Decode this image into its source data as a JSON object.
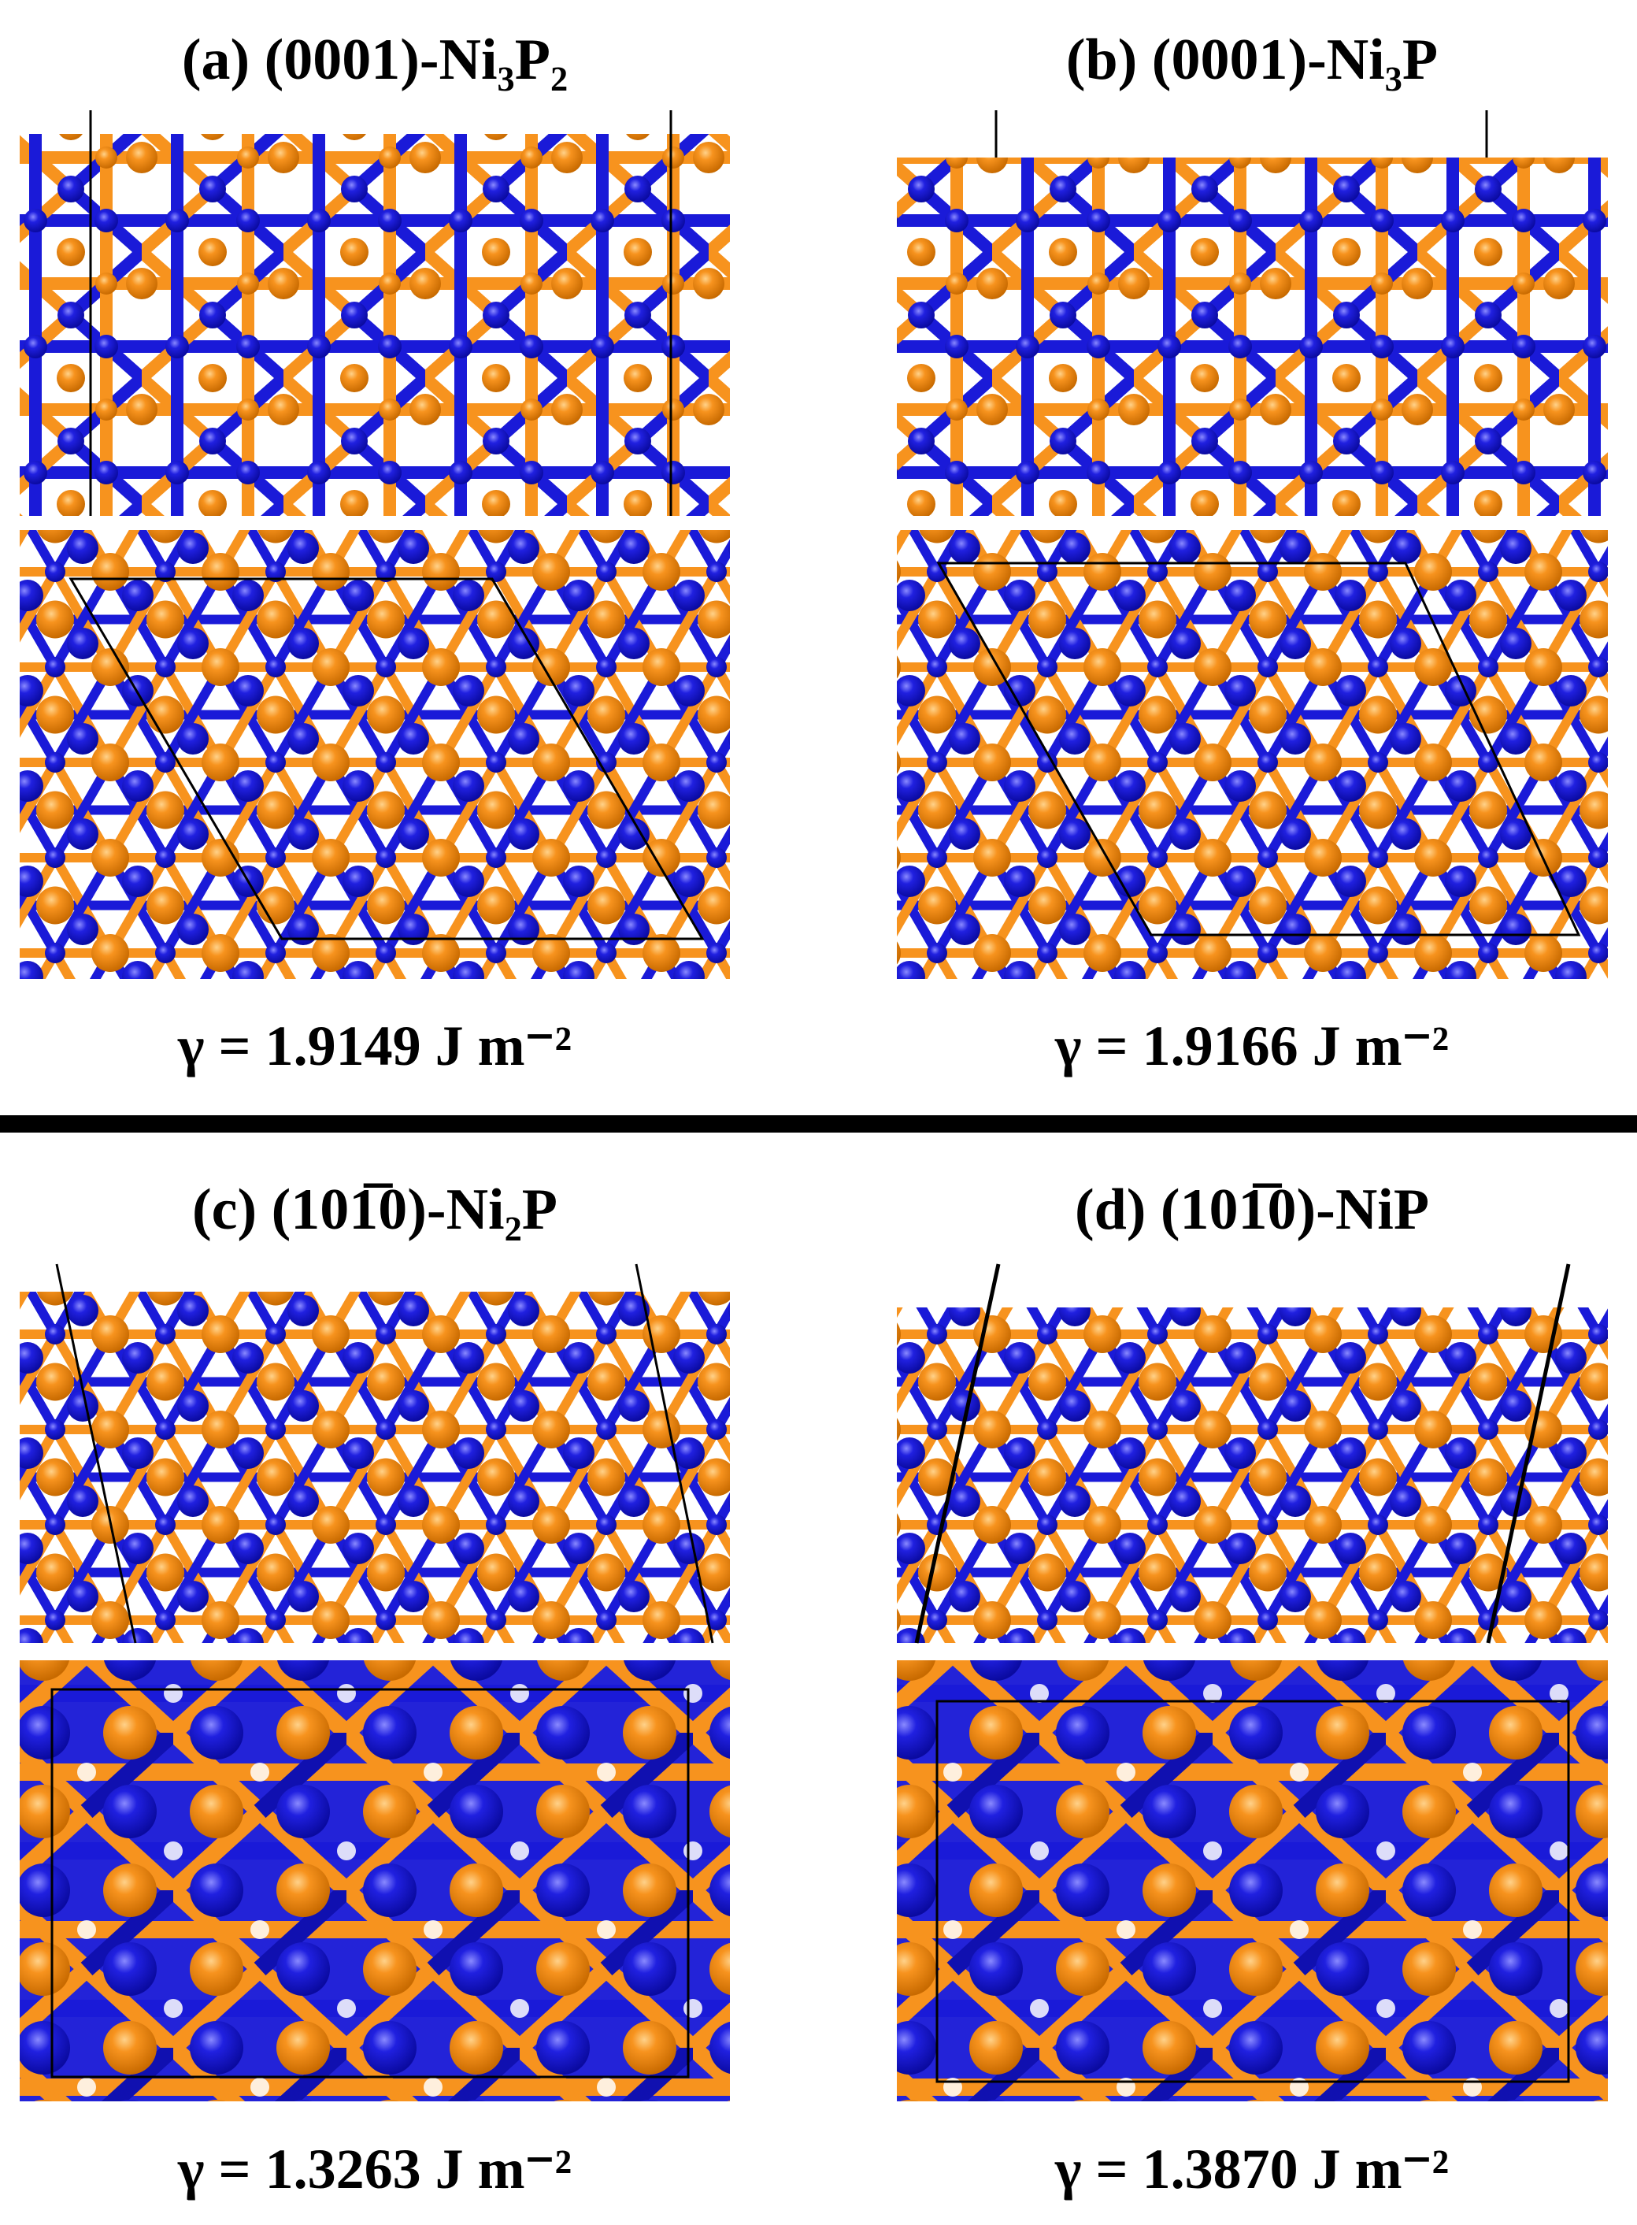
{
  "panels": [
    {
      "title": "(a) (0001)-Ni₃P₂",
      "energy": "γ = 1.9149 J m⁻²"
    },
    {
      "title": "(b) (0001)-Ni₃P",
      "energy": "γ = 1.9166 J m⁻²"
    },
    {
      "title": "(c) (101̅0)-Ni₂P",
      "energy": "γ = 1.3263 J m⁻²"
    },
    {
      "title": "(d) (101̅0)-NiP",
      "energy": "γ = 1.3870 J m⁻²"
    }
  ]
}
